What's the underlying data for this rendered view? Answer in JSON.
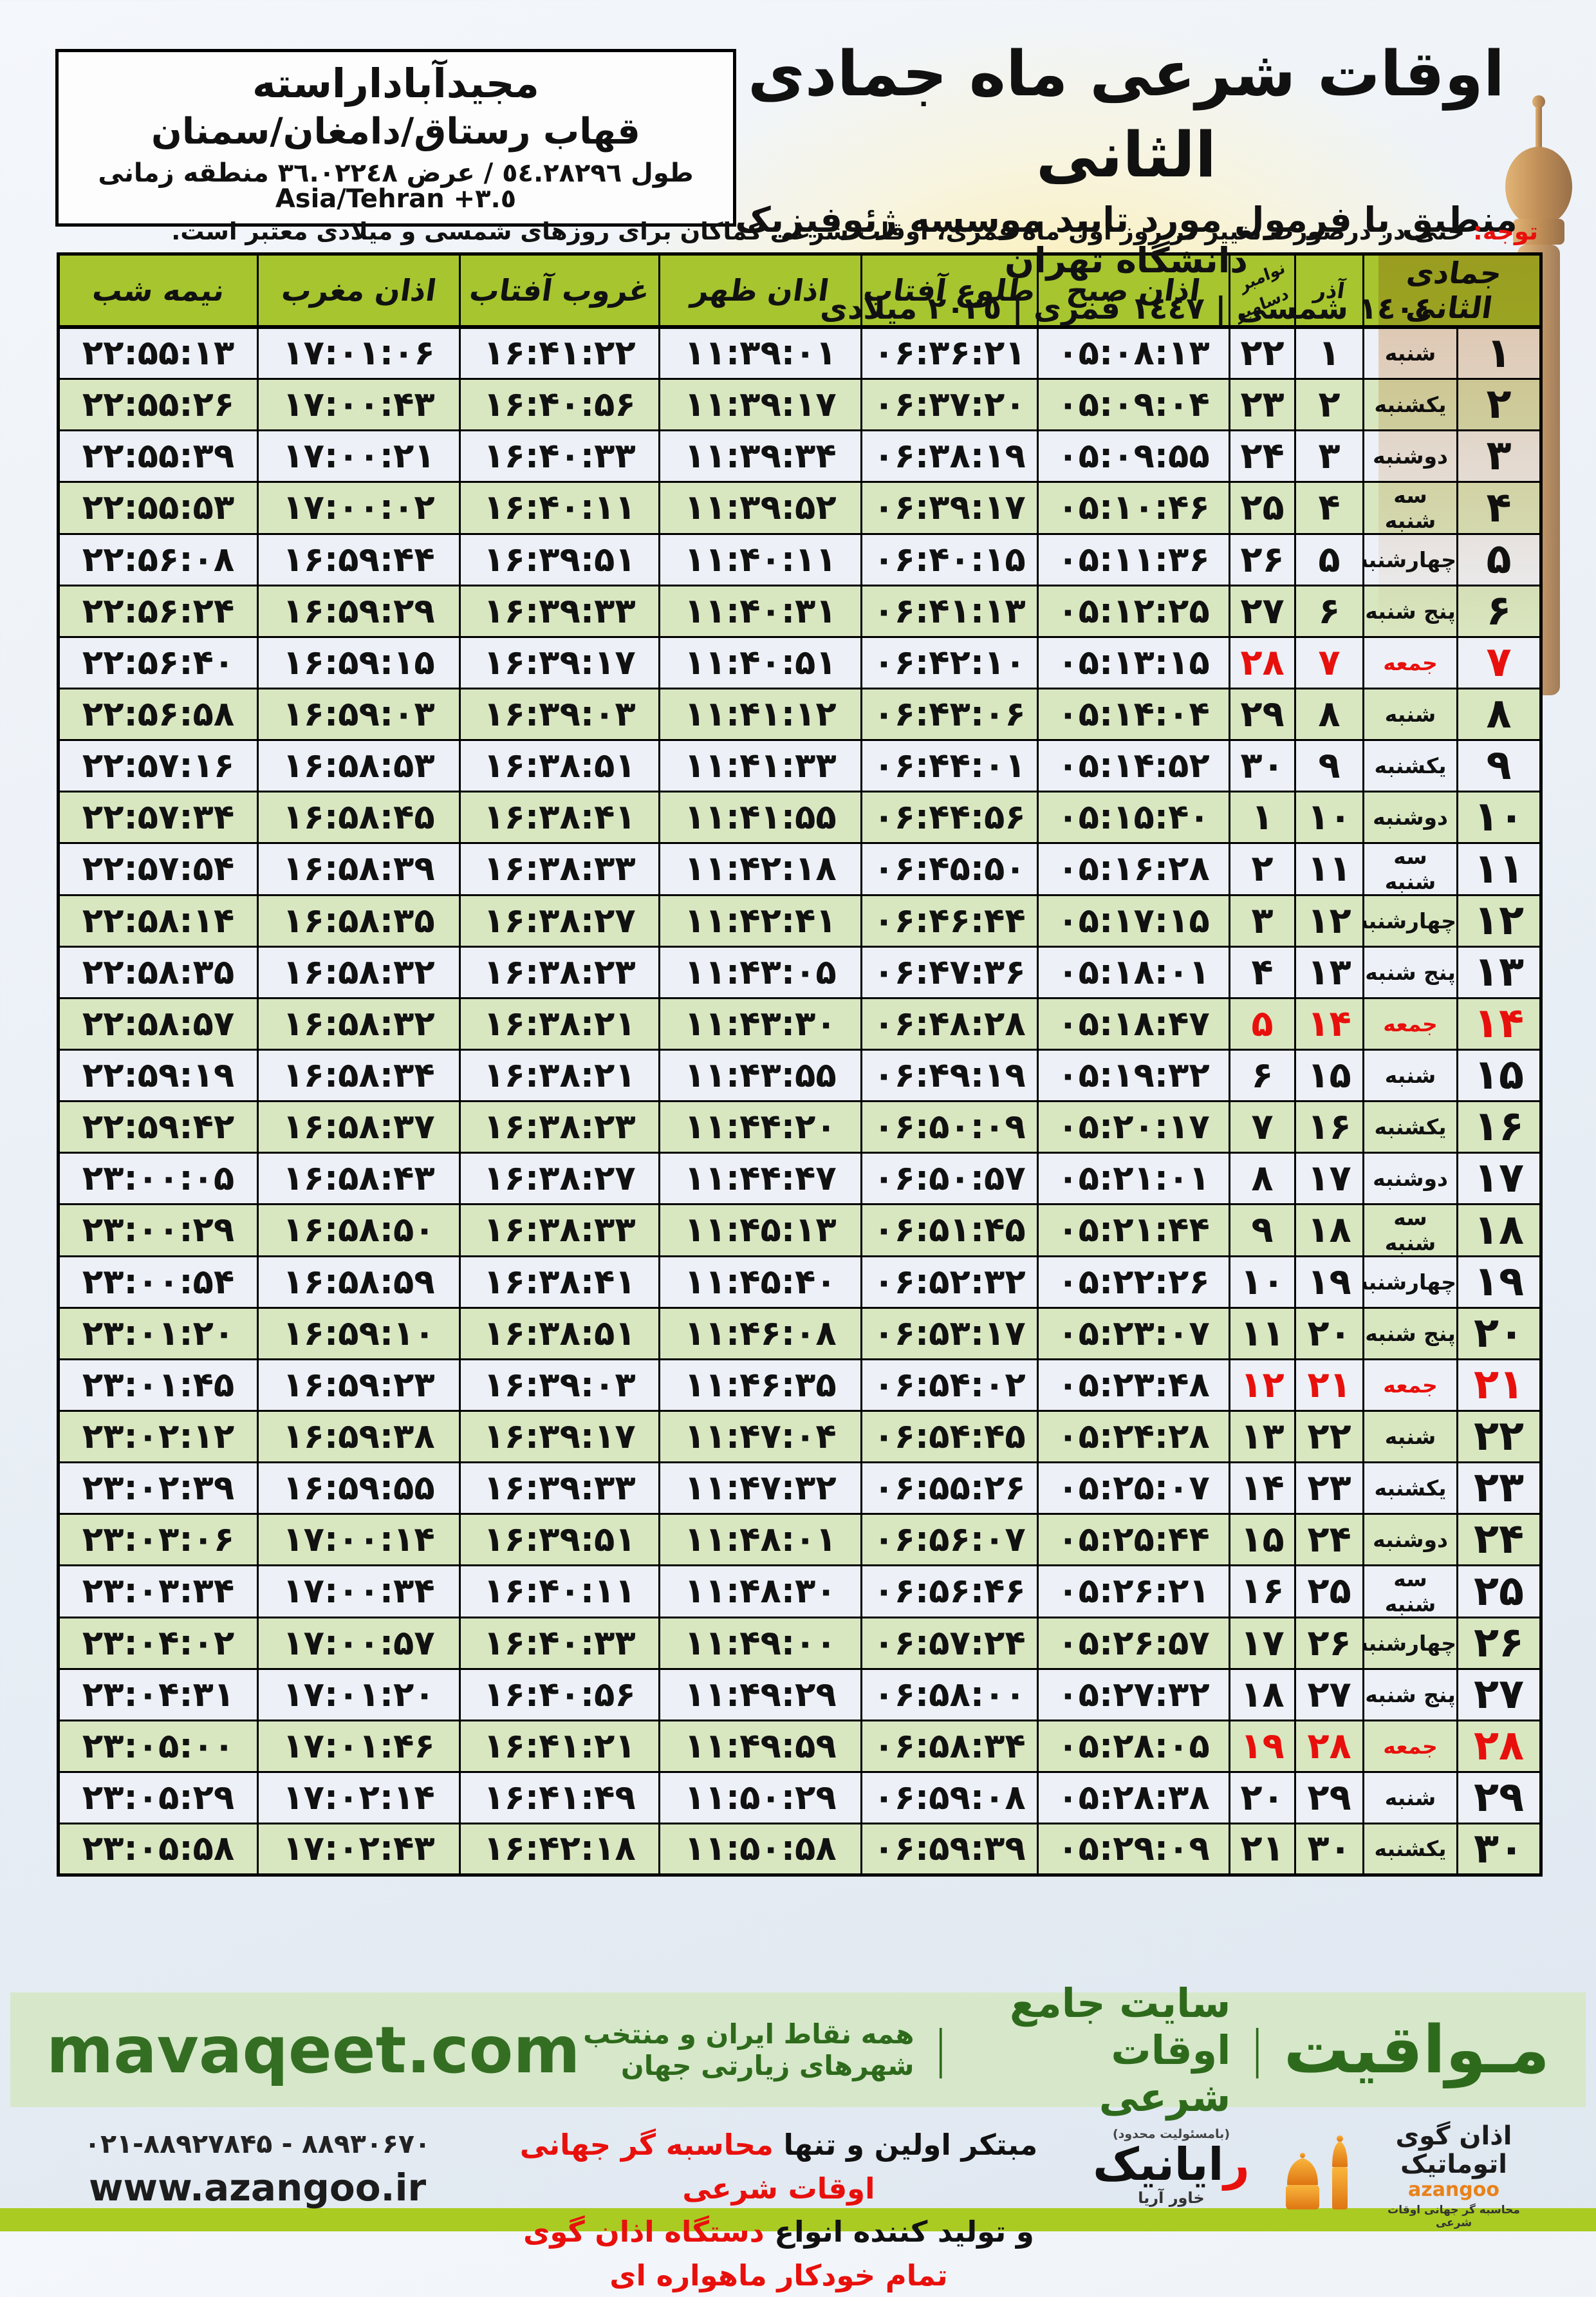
{
  "page": {
    "title": "اوقات شرعی ماه جمادی الثانی",
    "subtitle": "منطبق با فرمول مورد تایید موسسه ژئوفیزیک دانشگاه تهران",
    "calendar_line": "١٤٠٤ شمسی | ١٤٤٧ قمری | ٢٠٢٥ میلادی"
  },
  "location": {
    "name": "مجیدآباداراسته",
    "region": "قهاب رستاق/دامغان/سمنان",
    "coords": "طول ٥٤.٢٨٢٩٦ / عرض ٣٦.٠٢٢٤٨ منطقه زمانی",
    "timezone": "Asia/Tehran +٣.٥"
  },
  "notice": {
    "label": "توجه:",
    "text": "حتی در درصورت تغییر در روز اول ماه قمری، اوقات شرعی کماکان برای روزهای شمسی و میلادی معتبر است."
  },
  "table": {
    "headers": {
      "jamadi": "جمادی الثانی",
      "azar": "آذر",
      "nov": "نوامبر",
      "dec": "دسامبر",
      "sobh": "اذان صبح",
      "tolu": "طلوع آفتاب",
      "zohr": "اذان ظهر",
      "ghorub": "غروب آفتاب",
      "maghreb": "اذان مغرب",
      "nime": "نیمه شب"
    },
    "columns": [
      "day",
      "weekday",
      "azar",
      "miladi",
      "sobh",
      "tolu",
      "zohr",
      "ghorub",
      "maghreb",
      "nime"
    ],
    "rows": [
      [
        "۱",
        "شنبه",
        "۱",
        "۲۲",
        "۰۵:۰۸:۱۳",
        "۰۶:۳۶:۲۱",
        "۱۱:۳۹:۰۱",
        "۱۶:۴۱:۲۲",
        "۱۷:۰۱:۰۶",
        "۲۲:۵۵:۱۳",
        0
      ],
      [
        "۲",
        "یکشنبه",
        "۲",
        "۲۳",
        "۰۵:۰۹:۰۴",
        "۰۶:۳۷:۲۰",
        "۱۱:۳۹:۱۷",
        "۱۶:۴۰:۵۶",
        "۱۷:۰۰:۴۳",
        "۲۲:۵۵:۲۶",
        0
      ],
      [
        "۳",
        "دوشنبه",
        "۳",
        "۲۴",
        "۰۵:۰۹:۵۵",
        "۰۶:۳۸:۱۹",
        "۱۱:۳۹:۳۴",
        "۱۶:۴۰:۳۳",
        "۱۷:۰۰:۲۱",
        "۲۲:۵۵:۳۹",
        0
      ],
      [
        "۴",
        "سه شنبه",
        "۴",
        "۲۵",
        "۰۵:۱۰:۴۶",
        "۰۶:۳۹:۱۷",
        "۱۱:۳۹:۵۲",
        "۱۶:۴۰:۱۱",
        "۱۷:۰۰:۰۲",
        "۲۲:۵۵:۵۳",
        0
      ],
      [
        "۵",
        "چهارشنبه",
        "۵",
        "۲۶",
        "۰۵:۱۱:۳۶",
        "۰۶:۴۰:۱۵",
        "۱۱:۴۰:۱۱",
        "۱۶:۳۹:۵۱",
        "۱۶:۵۹:۴۴",
        "۲۲:۵۶:۰۸",
        0
      ],
      [
        "۶",
        "پنج شنبه",
        "۶",
        "۲۷",
        "۰۵:۱۲:۲۵",
        "۰۶:۴۱:۱۳",
        "۱۱:۴۰:۳۱",
        "۱۶:۳۹:۳۳",
        "۱۶:۵۹:۲۹",
        "۲۲:۵۶:۲۴",
        0
      ],
      [
        "۷",
        "جمعه",
        "۷",
        "۲۸",
        "۰۵:۱۳:۱۵",
        "۰۶:۴۲:۱۰",
        "۱۱:۴۰:۵۱",
        "۱۶:۳۹:۱۷",
        "۱۶:۵۹:۱۵",
        "۲۲:۵۶:۴۰",
        1
      ],
      [
        "۸",
        "شنبه",
        "۸",
        "۲۹",
        "۰۵:۱۴:۰۴",
        "۰۶:۴۳:۰۶",
        "۱۱:۴۱:۱۲",
        "۱۶:۳۹:۰۳",
        "۱۶:۵۹:۰۳",
        "۲۲:۵۶:۵۸",
        0
      ],
      [
        "۹",
        "یکشنبه",
        "۹",
        "۳۰",
        "۰۵:۱۴:۵۲",
        "۰۶:۴۴:۰۱",
        "۱۱:۴۱:۳۳",
        "۱۶:۳۸:۵۱",
        "۱۶:۵۸:۵۳",
        "۲۲:۵۷:۱۶",
        0
      ],
      [
        "۱۰",
        "دوشنبه",
        "۱۰",
        "۱",
        "۰۵:۱۵:۴۰",
        "۰۶:۴۴:۵۶",
        "۱۱:۴۱:۵۵",
        "۱۶:۳۸:۴۱",
        "۱۶:۵۸:۴۵",
        "۲۲:۵۷:۳۴",
        0
      ],
      [
        "۱۱",
        "سه شنبه",
        "۱۱",
        "۲",
        "۰۵:۱۶:۲۸",
        "۰۶:۴۵:۵۰",
        "۱۱:۴۲:۱۸",
        "۱۶:۳۸:۳۳",
        "۱۶:۵۸:۳۹",
        "۲۲:۵۷:۵۴",
        0
      ],
      [
        "۱۲",
        "چهارشنبه",
        "۱۲",
        "۳",
        "۰۵:۱۷:۱۵",
        "۰۶:۴۶:۴۴",
        "۱۱:۴۲:۴۱",
        "۱۶:۳۸:۲۷",
        "۱۶:۵۸:۳۵",
        "۲۲:۵۸:۱۴",
        0
      ],
      [
        "۱۳",
        "پنج شنبه",
        "۱۳",
        "۴",
        "۰۵:۱۸:۰۱",
        "۰۶:۴۷:۳۶",
        "۱۱:۴۳:۰۵",
        "۱۶:۳۸:۲۳",
        "۱۶:۵۸:۳۲",
        "۲۲:۵۸:۳۵",
        0
      ],
      [
        "۱۴",
        "جمعه",
        "۱۴",
        "۵",
        "۰۵:۱۸:۴۷",
        "۰۶:۴۸:۲۸",
        "۱۱:۴۳:۳۰",
        "۱۶:۳۸:۲۱",
        "۱۶:۵۸:۳۲",
        "۲۲:۵۸:۵۷",
        1
      ],
      [
        "۱۵",
        "شنبه",
        "۱۵",
        "۶",
        "۰۵:۱۹:۳۲",
        "۰۶:۴۹:۱۹",
        "۱۱:۴۳:۵۵",
        "۱۶:۳۸:۲۱",
        "۱۶:۵۸:۳۴",
        "۲۲:۵۹:۱۹",
        0
      ],
      [
        "۱۶",
        "یکشنبه",
        "۱۶",
        "۷",
        "۰۵:۲۰:۱۷",
        "۰۶:۵۰:۰۹",
        "۱۱:۴۴:۲۰",
        "۱۶:۳۸:۲۳",
        "۱۶:۵۸:۳۷",
        "۲۲:۵۹:۴۲",
        0
      ],
      [
        "۱۷",
        "دوشنبه",
        "۱۷",
        "۸",
        "۰۵:۲۱:۰۱",
        "۰۶:۵۰:۵۷",
        "۱۱:۴۴:۴۷",
        "۱۶:۳۸:۲۷",
        "۱۶:۵۸:۴۳",
        "۲۳:۰۰:۰۵",
        0
      ],
      [
        "۱۸",
        "سه شنبه",
        "۱۸",
        "۹",
        "۰۵:۲۱:۴۴",
        "۰۶:۵۱:۴۵",
        "۱۱:۴۵:۱۳",
        "۱۶:۳۸:۳۳",
        "۱۶:۵۸:۵۰",
        "۲۳:۰۰:۲۹",
        0
      ],
      [
        "۱۹",
        "چهارشنبه",
        "۱۹",
        "۱۰",
        "۰۵:۲۲:۲۶",
        "۰۶:۵۲:۳۲",
        "۱۱:۴۵:۴۰",
        "۱۶:۳۸:۴۱",
        "۱۶:۵۸:۵۹",
        "۲۳:۰۰:۵۴",
        0
      ],
      [
        "۲۰",
        "پنج شنبه",
        "۲۰",
        "۱۱",
        "۰۵:۲۳:۰۷",
        "۰۶:۵۳:۱۷",
        "۱۱:۴۶:۰۸",
        "۱۶:۳۸:۵۱",
        "۱۶:۵۹:۱۰",
        "۲۳:۰۱:۲۰",
        0
      ],
      [
        "۲۱",
        "جمعه",
        "۲۱",
        "۱۲",
        "۰۵:۲۳:۴۸",
        "۰۶:۵۴:۰۲",
        "۱۱:۴۶:۳۵",
        "۱۶:۳۹:۰۳",
        "۱۶:۵۹:۲۳",
        "۲۳:۰۱:۴۵",
        1
      ],
      [
        "۲۲",
        "شنبه",
        "۲۲",
        "۱۳",
        "۰۵:۲۴:۲۸",
        "۰۶:۵۴:۴۵",
        "۱۱:۴۷:۰۴",
        "۱۶:۳۹:۱۷",
        "۱۶:۵۹:۳۸",
        "۲۳:۰۲:۱۲",
        0
      ],
      [
        "۲۳",
        "یکشنبه",
        "۲۳",
        "۱۴",
        "۰۵:۲۵:۰۷",
        "۰۶:۵۵:۲۶",
        "۱۱:۴۷:۳۲",
        "۱۶:۳۹:۳۳",
        "۱۶:۵۹:۵۵",
        "۲۳:۰۲:۳۹",
        0
      ],
      [
        "۲۴",
        "دوشنبه",
        "۲۴",
        "۱۵",
        "۰۵:۲۵:۴۴",
        "۰۶:۵۶:۰۷",
        "۱۱:۴۸:۰۱",
        "۱۶:۳۹:۵۱",
        "۱۷:۰۰:۱۴",
        "۲۳:۰۳:۰۶",
        0
      ],
      [
        "۲۵",
        "سه شنبه",
        "۲۵",
        "۱۶",
        "۰۵:۲۶:۲۱",
        "۰۶:۵۶:۴۶",
        "۱۱:۴۸:۳۰",
        "۱۶:۴۰:۱۱",
        "۱۷:۰۰:۳۴",
        "۲۳:۰۳:۳۴",
        0
      ],
      [
        "۲۶",
        "چهارشنبه",
        "۲۶",
        "۱۷",
        "۰۵:۲۶:۵۷",
        "۰۶:۵۷:۲۴",
        "۱۱:۴۹:۰۰",
        "۱۶:۴۰:۳۳",
        "۱۷:۰۰:۵۷",
        "۲۳:۰۴:۰۲",
        0
      ],
      [
        "۲۷",
        "پنج شنبه",
        "۲۷",
        "۱۸",
        "۰۵:۲۷:۳۲",
        "۰۶:۵۸:۰۰",
        "۱۱:۴۹:۲۹",
        "۱۶:۴۰:۵۶",
        "۱۷:۰۱:۲۰",
        "۲۳:۰۴:۳۱",
        0
      ],
      [
        "۲۸",
        "جمعه",
        "۲۸",
        "۱۹",
        "۰۵:۲۸:۰۵",
        "۰۶:۵۸:۳۴",
        "۱۱:۴۹:۵۹",
        "۱۶:۴۱:۲۱",
        "۱۷:۰۱:۴۶",
        "۲۳:۰۵:۰۰",
        1
      ],
      [
        "۲۹",
        "شنبه",
        "۲۹",
        "۲۰",
        "۰۵:۲۸:۳۸",
        "۰۶:۵۹:۰۸",
        "۱۱:۵۰:۲۹",
        "۱۶:۴۱:۴۹",
        "۱۷:۰۲:۱۴",
        "۲۳:۰۵:۲۹",
        0
      ],
      [
        "۳۰",
        "یکشنبه",
        "۳۰",
        "۲۱",
        "۰۵:۲۹:۰۹",
        "۰۶:۵۹:۳۹",
        "۱۱:۵۰:۵۸",
        "۱۶:۴۲:۱۸",
        "۱۷:۰۲:۴۳",
        "۲۳:۰۵:۵۸",
        0
      ]
    ]
  },
  "banner": {
    "brand": "مـواقیت",
    "divider": "|",
    "site_label": "سایت جامع اوقات شرعی",
    "site_desc": "همه نقاط ایران و منتخب شهرهای زیارتی جهان",
    "url": "mavaqeet.com"
  },
  "footer": {
    "phone": "۰۲۱-۸۸۹۲۷۸۴۵ - ۸۸۹۳۰۶۷۰",
    "website": "www.azangoo.ir",
    "line1_black": "مبتکر اولین و تنها ",
    "line1_red": "محاسبه گر جهانی اوقات شرعی",
    "line2_black": "و تولید کننده انواع ",
    "line2_red": "دستگاه اذان گوی تمام خودکار ماهواره ای",
    "rayanik": {
      "note": "(بامسئولیت محدود)",
      "name_first": "ر",
      "name_rest": "ایانیک",
      "sub": "خاور آریا"
    },
    "azangoo": {
      "name": "اذان گوی اتوماتیک",
      "latin": "azangoo",
      "tagline": "محاسبه گر جهانی اوقات شرعی"
    }
  },
  "colors": {
    "header_green": "#a6c52f",
    "row_green": "#d9e7c1",
    "row_light": "#edf1f7",
    "friday_red": "#e8100c",
    "banner_bg": "#d6e8c9",
    "banner_text": "#2e6a1c",
    "bottom_strip": "#a9cb22",
    "azangoo_orange": "#e8821a"
  }
}
